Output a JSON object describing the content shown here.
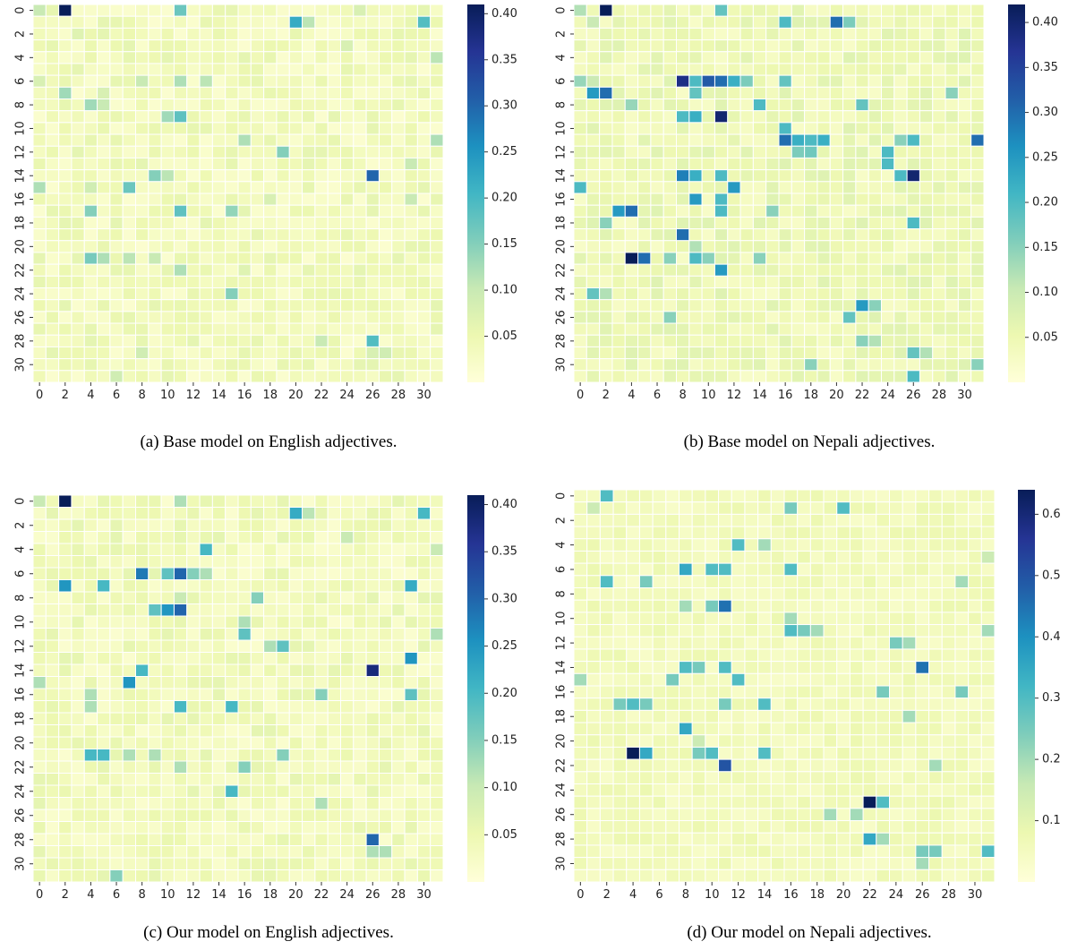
{
  "figure": {
    "panels": [
      {
        "caption": "(a) Base model on English adjectives.",
        "colorbar_ticks": [
          "0.05",
          "0.10",
          "0.15",
          "0.20",
          "0.25",
          "0.30",
          "0.35",
          "0.40"
        ]
      },
      {
        "caption": "(b) Base model on Nepali adjectives.",
        "colorbar_ticks": [
          "0.05",
          "0.10",
          "0.15",
          "0.20",
          "0.25",
          "0.30",
          "0.35",
          "0.40"
        ]
      },
      {
        "caption": "(c) Our model on English adjectives.",
        "colorbar_ticks": [
          "0.05",
          "0.10",
          "0.15",
          "0.20",
          "0.25",
          "0.30",
          "0.35",
          "0.40"
        ]
      },
      {
        "caption": "(d) Our model on Nepali adjectives.",
        "colorbar_ticks": [
          "0.1",
          "0.2",
          "0.3",
          "0.4",
          "0.5",
          "0.6"
        ]
      }
    ]
  },
  "chart_data": [
    {
      "type": "heatmap",
      "title": "",
      "xlabel": "",
      "ylabel": "",
      "x_ticks": [
        0,
        2,
        4,
        6,
        8,
        10,
        12,
        14,
        16,
        18,
        20,
        22,
        24,
        26,
        28,
        30
      ],
      "y_ticks": [
        0,
        2,
        4,
        6,
        8,
        10,
        12,
        14,
        16,
        18,
        20,
        22,
        24,
        26,
        28,
        30
      ],
      "grid_size": [
        32,
        32
      ],
      "colormap": "YlGnBu",
      "vmin": 0.0,
      "vmax": 0.41,
      "colorbar_ticks": [
        0.05,
        0.1,
        0.15,
        0.2,
        0.25,
        0.3,
        0.35,
        0.4
      ],
      "background_value": 0.03,
      "cells": [
        [
          0,
          0,
          0.1
        ],
        [
          0,
          2,
          0.41
        ],
        [
          0,
          11,
          0.17
        ],
        [
          0,
          15,
          0.06
        ],
        [
          0,
          25,
          0.08
        ],
        [
          1,
          20,
          0.22
        ],
        [
          1,
          21,
          0.11
        ],
        [
          1,
          30,
          0.19
        ],
        [
          2,
          3,
          0.07
        ],
        [
          3,
          24,
          0.08
        ],
        [
          4,
          31,
          0.11
        ],
        [
          5,
          2,
          0.05
        ],
        [
          6,
          0,
          0.08
        ],
        [
          6,
          8,
          0.1
        ],
        [
          6,
          11,
          0.12
        ],
        [
          6,
          13,
          0.11
        ],
        [
          7,
          2,
          0.13
        ],
        [
          7,
          5,
          0.08
        ],
        [
          8,
          4,
          0.13
        ],
        [
          8,
          5,
          0.1
        ],
        [
          9,
          10,
          0.13
        ],
        [
          9,
          11,
          0.18
        ],
        [
          11,
          16,
          0.12
        ],
        [
          11,
          31,
          0.12
        ],
        [
          12,
          19,
          0.15
        ],
        [
          13,
          29,
          0.1
        ],
        [
          14,
          9,
          0.15
        ],
        [
          14,
          10,
          0.11
        ],
        [
          14,
          26,
          0.3
        ],
        [
          15,
          0,
          0.12
        ],
        [
          15,
          4,
          0.09
        ],
        [
          15,
          7,
          0.17
        ],
        [
          16,
          18,
          0.08
        ],
        [
          16,
          29,
          0.1
        ],
        [
          17,
          4,
          0.15
        ],
        [
          17,
          11,
          0.18
        ],
        [
          17,
          15,
          0.14
        ],
        [
          19,
          8,
          0.05
        ],
        [
          21,
          4,
          0.16
        ],
        [
          21,
          5,
          0.12
        ],
        [
          21,
          7,
          0.11
        ],
        [
          21,
          9,
          0.1
        ],
        [
          22,
          11,
          0.12
        ],
        [
          22,
          16,
          0.07
        ],
        [
          24,
          15,
          0.15
        ],
        [
          28,
          22,
          0.1
        ],
        [
          28,
          26,
          0.19
        ],
        [
          29,
          8,
          0.09
        ],
        [
          29,
          26,
          0.08
        ],
        [
          29,
          27,
          0.09
        ],
        [
          31,
          6,
          0.09
        ]
      ]
    },
    {
      "type": "heatmap",
      "title": "",
      "xlabel": "",
      "ylabel": "",
      "x_ticks": [
        0,
        2,
        4,
        6,
        8,
        10,
        12,
        14,
        16,
        18,
        20,
        22,
        24,
        26,
        28,
        30
      ],
      "y_ticks": [
        0,
        2,
        4,
        6,
        8,
        10,
        12,
        14,
        16,
        18,
        20,
        22,
        24,
        26,
        28,
        30
      ],
      "grid_size": [
        32,
        32
      ],
      "colormap": "YlGnBu",
      "vmin": 0.0,
      "vmax": 0.42,
      "colorbar_ticks": [
        0.05,
        0.1,
        0.15,
        0.2,
        0.25,
        0.3,
        0.35,
        0.4
      ],
      "background_value": 0.04,
      "cells": [
        [
          0,
          0,
          0.12
        ],
        [
          0,
          2,
          0.42
        ],
        [
          0,
          11,
          0.18
        ],
        [
          1,
          16,
          0.2
        ],
        [
          1,
          20,
          0.3
        ],
        [
          1,
          21,
          0.16
        ],
        [
          1,
          1,
          0.1
        ],
        [
          6,
          0,
          0.14
        ],
        [
          6,
          1,
          0.1
        ],
        [
          6,
          8,
          0.38
        ],
        [
          6,
          9,
          0.2
        ],
        [
          6,
          10,
          0.32
        ],
        [
          6,
          11,
          0.3
        ],
        [
          6,
          12,
          0.22
        ],
        [
          6,
          13,
          0.16
        ],
        [
          6,
          16,
          0.18
        ],
        [
          7,
          1,
          0.25
        ],
        [
          7,
          2,
          0.3
        ],
        [
          7,
          9,
          0.18
        ],
        [
          7,
          29,
          0.15
        ],
        [
          8,
          4,
          0.14
        ],
        [
          8,
          14,
          0.2
        ],
        [
          8,
          22,
          0.18
        ],
        [
          9,
          8,
          0.2
        ],
        [
          9,
          9,
          0.22
        ],
        [
          9,
          11,
          0.4
        ],
        [
          10,
          16,
          0.2
        ],
        [
          11,
          16,
          0.3
        ],
        [
          11,
          17,
          0.22
        ],
        [
          11,
          18,
          0.2
        ],
        [
          11,
          19,
          0.22
        ],
        [
          11,
          25,
          0.15
        ],
        [
          11,
          26,
          0.2
        ],
        [
          11,
          31,
          0.3
        ],
        [
          12,
          17,
          0.16
        ],
        [
          12,
          18,
          0.17
        ],
        [
          12,
          24,
          0.2
        ],
        [
          13,
          24,
          0.2
        ],
        [
          14,
          8,
          0.28
        ],
        [
          14,
          9,
          0.22
        ],
        [
          14,
          11,
          0.2
        ],
        [
          14,
          25,
          0.2
        ],
        [
          14,
          26,
          0.4
        ],
        [
          15,
          0,
          0.2
        ],
        [
          15,
          12,
          0.25
        ],
        [
          16,
          9,
          0.25
        ],
        [
          16,
          11,
          0.2
        ],
        [
          17,
          3,
          0.25
        ],
        [
          17,
          4,
          0.3
        ],
        [
          17,
          11,
          0.2
        ],
        [
          17,
          15,
          0.15
        ],
        [
          18,
          2,
          0.15
        ],
        [
          18,
          26,
          0.2
        ],
        [
          19,
          8,
          0.3
        ],
        [
          20,
          9,
          0.12
        ],
        [
          21,
          4,
          0.42
        ],
        [
          21,
          5,
          0.3
        ],
        [
          21,
          7,
          0.15
        ],
        [
          21,
          9,
          0.2
        ],
        [
          21,
          10,
          0.15
        ],
        [
          21,
          14,
          0.15
        ],
        [
          22,
          11,
          0.25
        ],
        [
          24,
          1,
          0.18
        ],
        [
          24,
          2,
          0.12
        ],
        [
          25,
          22,
          0.25
        ],
        [
          25,
          23,
          0.15
        ],
        [
          26,
          21,
          0.18
        ],
        [
          26,
          7,
          0.15
        ],
        [
          28,
          22,
          0.15
        ],
        [
          28,
          23,
          0.12
        ],
        [
          29,
          26,
          0.18
        ],
        [
          29,
          27,
          0.12
        ],
        [
          30,
          18,
          0.15
        ],
        [
          30,
          31,
          0.15
        ],
        [
          31,
          26,
          0.2
        ]
      ]
    },
    {
      "type": "heatmap",
      "title": "",
      "xlabel": "",
      "ylabel": "",
      "x_ticks": [
        0,
        2,
        4,
        6,
        8,
        10,
        12,
        14,
        16,
        18,
        20,
        22,
        24,
        26,
        28,
        30
      ],
      "y_ticks": [
        0,
        2,
        4,
        6,
        8,
        10,
        12,
        14,
        16,
        18,
        20,
        22,
        24,
        26,
        28,
        30
      ],
      "grid_size": [
        32,
        32
      ],
      "colormap": "YlGnBu",
      "vmin": 0.0,
      "vmax": 0.41,
      "colorbar_ticks": [
        0.05,
        0.1,
        0.15,
        0.2,
        0.25,
        0.3,
        0.35,
        0.4
      ],
      "background_value": 0.03,
      "cells": [
        [
          0,
          0,
          0.1
        ],
        [
          0,
          2,
          0.41
        ],
        [
          0,
          11,
          0.12
        ],
        [
          1,
          20,
          0.22
        ],
        [
          1,
          21,
          0.11
        ],
        [
          1,
          30,
          0.2
        ],
        [
          3,
          24,
          0.1
        ],
        [
          4,
          13,
          0.2
        ],
        [
          4,
          31,
          0.1
        ],
        [
          6,
          8,
          0.28
        ],
        [
          6,
          11,
          0.3
        ],
        [
          6,
          10,
          0.18
        ],
        [
          6,
          12,
          0.15
        ],
        [
          6,
          13,
          0.12
        ],
        [
          7,
          2,
          0.25
        ],
        [
          7,
          5,
          0.2
        ],
        [
          7,
          29,
          0.22
        ],
        [
          8,
          11,
          0.1
        ],
        [
          8,
          17,
          0.15
        ],
        [
          9,
          9,
          0.18
        ],
        [
          9,
          10,
          0.25
        ],
        [
          9,
          11,
          0.3
        ],
        [
          10,
          16,
          0.12
        ],
        [
          11,
          16,
          0.18
        ],
        [
          11,
          31,
          0.12
        ],
        [
          12,
          19,
          0.18
        ],
        [
          12,
          18,
          0.12
        ],
        [
          13,
          29,
          0.25
        ],
        [
          14,
          8,
          0.2
        ],
        [
          14,
          26,
          0.38
        ],
        [
          15,
          7,
          0.25
        ],
        [
          15,
          0,
          0.12
        ],
        [
          16,
          4,
          0.12
        ],
        [
          16,
          22,
          0.15
        ],
        [
          16,
          29,
          0.18
        ],
        [
          17,
          11,
          0.2
        ],
        [
          17,
          15,
          0.2
        ],
        [
          17,
          4,
          0.12
        ],
        [
          21,
          4,
          0.2
        ],
        [
          21,
          5,
          0.2
        ],
        [
          21,
          7,
          0.12
        ],
        [
          21,
          9,
          0.12
        ],
        [
          21,
          19,
          0.15
        ],
        [
          22,
          11,
          0.12
        ],
        [
          22,
          16,
          0.15
        ],
        [
          24,
          15,
          0.2
        ],
        [
          25,
          22,
          0.12
        ],
        [
          28,
          26,
          0.3
        ],
        [
          29,
          26,
          0.12
        ],
        [
          29,
          27,
          0.12
        ],
        [
          31,
          6,
          0.15
        ]
      ]
    },
    {
      "type": "heatmap",
      "title": "",
      "xlabel": "",
      "ylabel": "",
      "x_ticks": [
        0,
        2,
        4,
        6,
        8,
        10,
        12,
        14,
        16,
        18,
        20,
        22,
        24,
        26,
        28,
        30
      ],
      "y_ticks": [
        0,
        2,
        4,
        6,
        8,
        10,
        12,
        14,
        16,
        18,
        20,
        22,
        24,
        26,
        28,
        30
      ],
      "grid_size": [
        32,
        32
      ],
      "colormap": "YlGnBu",
      "vmin": 0.0,
      "vmax": 0.64,
      "colorbar_ticks": [
        0.1,
        0.2,
        0.3,
        0.4,
        0.5,
        0.6
      ],
      "background_value": 0.05,
      "cells": [
        [
          0,
          2,
          0.3
        ],
        [
          1,
          16,
          0.25
        ],
        [
          1,
          20,
          0.3
        ],
        [
          1,
          1,
          0.15
        ],
        [
          4,
          12,
          0.3
        ],
        [
          4,
          14,
          0.2
        ],
        [
          5,
          31,
          0.15
        ],
        [
          6,
          8,
          0.35
        ],
        [
          6,
          10,
          0.3
        ],
        [
          6,
          11,
          0.3
        ],
        [
          6,
          16,
          0.3
        ],
        [
          7,
          2,
          0.3
        ],
        [
          7,
          5,
          0.25
        ],
        [
          7,
          29,
          0.2
        ],
        [
          9,
          8,
          0.2
        ],
        [
          9,
          10,
          0.25
        ],
        [
          9,
          11,
          0.45
        ],
        [
          10,
          16,
          0.2
        ],
        [
          11,
          16,
          0.3
        ],
        [
          11,
          17,
          0.25
        ],
        [
          11,
          18,
          0.2
        ],
        [
          11,
          31,
          0.2
        ],
        [
          12,
          24,
          0.25
        ],
        [
          12,
          25,
          0.2
        ],
        [
          14,
          8,
          0.3
        ],
        [
          14,
          9,
          0.25
        ],
        [
          14,
          11,
          0.3
        ],
        [
          14,
          26,
          0.45
        ],
        [
          15,
          7,
          0.25
        ],
        [
          15,
          12,
          0.3
        ],
        [
          15,
          0,
          0.2
        ],
        [
          16,
          23,
          0.25
        ],
        [
          16,
          29,
          0.25
        ],
        [
          17,
          3,
          0.25
        ],
        [
          17,
          4,
          0.3
        ],
        [
          17,
          5,
          0.25
        ],
        [
          17,
          11,
          0.25
        ],
        [
          17,
          14,
          0.3
        ],
        [
          18,
          25,
          0.2
        ],
        [
          19,
          8,
          0.35
        ],
        [
          20,
          9,
          0.15
        ],
        [
          21,
          4,
          0.64
        ],
        [
          21,
          5,
          0.35
        ],
        [
          21,
          9,
          0.25
        ],
        [
          21,
          10,
          0.3
        ],
        [
          21,
          14,
          0.3
        ],
        [
          22,
          11,
          0.5
        ],
        [
          22,
          27,
          0.2
        ],
        [
          25,
          22,
          0.64
        ],
        [
          25,
          23,
          0.3
        ],
        [
          26,
          19,
          0.2
        ],
        [
          26,
          21,
          0.2
        ],
        [
          28,
          22,
          0.35
        ],
        [
          28,
          23,
          0.2
        ],
        [
          29,
          26,
          0.25
        ],
        [
          29,
          27,
          0.25
        ],
        [
          29,
          31,
          0.3
        ],
        [
          30,
          26,
          0.2
        ]
      ]
    }
  ]
}
